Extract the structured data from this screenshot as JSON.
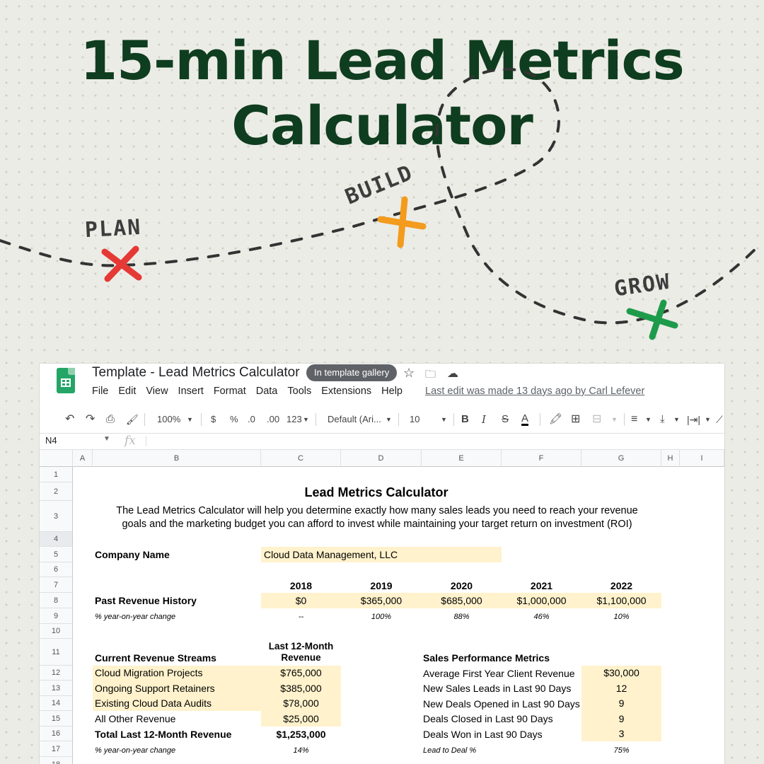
{
  "hero": {
    "title_line1": "15-min Lead Metrics",
    "title_line2": "Calculator",
    "stages": [
      {
        "label": "PLAN",
        "color": "#e53935"
      },
      {
        "label": "BUILD",
        "color": "#f29b1d"
      },
      {
        "label": "GROW",
        "color": "#1e9b4a"
      }
    ]
  },
  "window": {
    "title": "Template - Lead Metrics Calculator",
    "badge": "In template gallery",
    "menu": [
      "File",
      "Edit",
      "View",
      "Insert",
      "Format",
      "Data",
      "Tools",
      "Extensions",
      "Help"
    ],
    "last_edit": "Last edit was made 13 days ago by Carl Lefever"
  },
  "toolbar": {
    "zoom": "100%",
    "currency": "$",
    "percent": "%",
    "decrease_decimal": ".0",
    "increase_decimal": ".00",
    "more_formats": "123",
    "font": "Default (Ari...",
    "font_size": "10",
    "bold": "B",
    "italic": "I",
    "strike": "S",
    "text_color": "A"
  },
  "formula_bar": {
    "cell_ref": "N4",
    "fx": "fx"
  },
  "columns": [
    "A",
    "B",
    "C",
    "D",
    "E",
    "F",
    "G",
    "H",
    "I"
  ],
  "rows": [
    "1",
    "2",
    "3",
    "4",
    "5",
    "6",
    "7",
    "8",
    "9",
    "10",
    "11",
    "12",
    "13",
    "14",
    "15",
    "16",
    "17",
    "18"
  ],
  "sheet": {
    "heading": "Lead Metrics Calculator",
    "description_line1": "The Lead Metrics Calculator will help you determine exactly how many sales leads you need to reach your revenue",
    "description_line2": "goals and the marketing budget you can afford to invest while maintaining your target return on investment (ROI)",
    "company_label": "Company Name",
    "company_value": "Cloud Data Management, LLC",
    "years": [
      "2018",
      "2019",
      "2020",
      "2021",
      "2022"
    ],
    "past_revenue_label": "Past Revenue History",
    "past_revenue": [
      "$0",
      "$365,000",
      "$685,000",
      "$1,000,000",
      "$1,100,000"
    ],
    "yoy_label": "% year-on-year change",
    "yoy": [
      "--",
      "100%",
      "88%",
      "46%",
      "10%"
    ],
    "streams_header": "Current Revenue Streams",
    "last12_header_line1": "Last 12-Month",
    "last12_header_line2": "Revenue",
    "streams": [
      {
        "name": "Cloud Migration Projects",
        "value": "$765,000"
      },
      {
        "name": "Ongoing Support Retainers",
        "value": "$385,000"
      },
      {
        "name": "Existing Cloud Data Audits",
        "value": "$78,000"
      },
      {
        "name": "All Other Revenue",
        "value": "$25,000"
      }
    ],
    "total_label": "Total Last 12-Month Revenue",
    "total_value": "$1,253,000",
    "total_yoy_label": "% year-on-year change",
    "total_yoy": "14%",
    "sales_header": "Sales Performance Metrics",
    "sales": [
      {
        "name": "Average First Year Client Revenue",
        "value": "$30,000"
      },
      {
        "name": "New Sales Leads in Last 90 Days",
        "value": "12"
      },
      {
        "name": "New Deals Opened in Last 90 Days",
        "value": "9"
      },
      {
        "name": "Deals Closed in Last 90 Days",
        "value": "9"
      },
      {
        "name": "Deals Won in Last 90 Days",
        "value": "3"
      }
    ],
    "lead_to_deal_label": "Lead to Deal %",
    "lead_to_deal": "75%"
  }
}
